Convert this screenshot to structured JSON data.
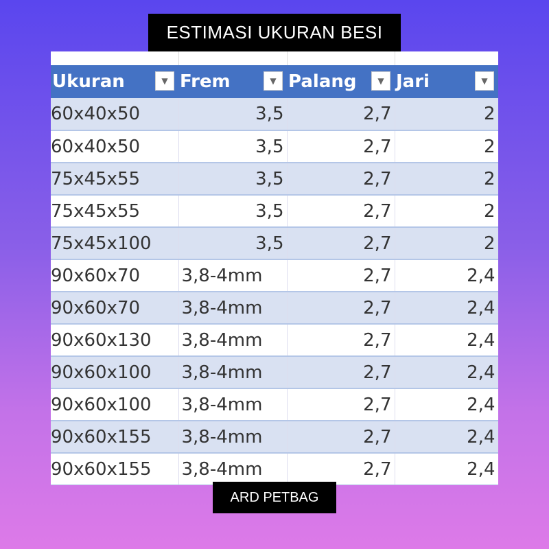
{
  "title": "ESTIMASI UKURAN BESI",
  "brand": "ARD PETBAG",
  "colors": {
    "header": "#4472c4",
    "band": "#d9e1f2",
    "label_bg": "#000000"
  },
  "table": {
    "headers": [
      "Ukuran",
      "Frem",
      "Palang",
      "Jari"
    ],
    "rows": [
      [
        "60x40x50",
        "3,5",
        "2,7",
        "2"
      ],
      [
        "60x40x50",
        "3,5",
        "2,7",
        "2"
      ],
      [
        "75x45x55",
        "3,5",
        "2,7",
        "2"
      ],
      [
        "75x45x55",
        "3,5",
        "2,7",
        "2"
      ],
      [
        "75x45x100",
        "3,5",
        "2,7",
        "2"
      ],
      [
        "90x60x70",
        "3,8-4mm",
        "2,7",
        "2,4"
      ],
      [
        "90x60x70",
        "3,8-4mm",
        "2,7",
        "2,4"
      ],
      [
        "90x60x130",
        "3,8-4mm",
        "2,7",
        "2,4"
      ],
      [
        "90x60x100",
        "3,8-4mm",
        "2,7",
        "2,4"
      ],
      [
        "90x60x100",
        "3,8-4mm",
        "2,7",
        "2,4"
      ],
      [
        "90x60x155",
        "3,8-4mm",
        "2,7",
        "2,4"
      ],
      [
        "90x60x155",
        "3,8-4mm",
        "2,7",
        "2,4"
      ]
    ]
  }
}
